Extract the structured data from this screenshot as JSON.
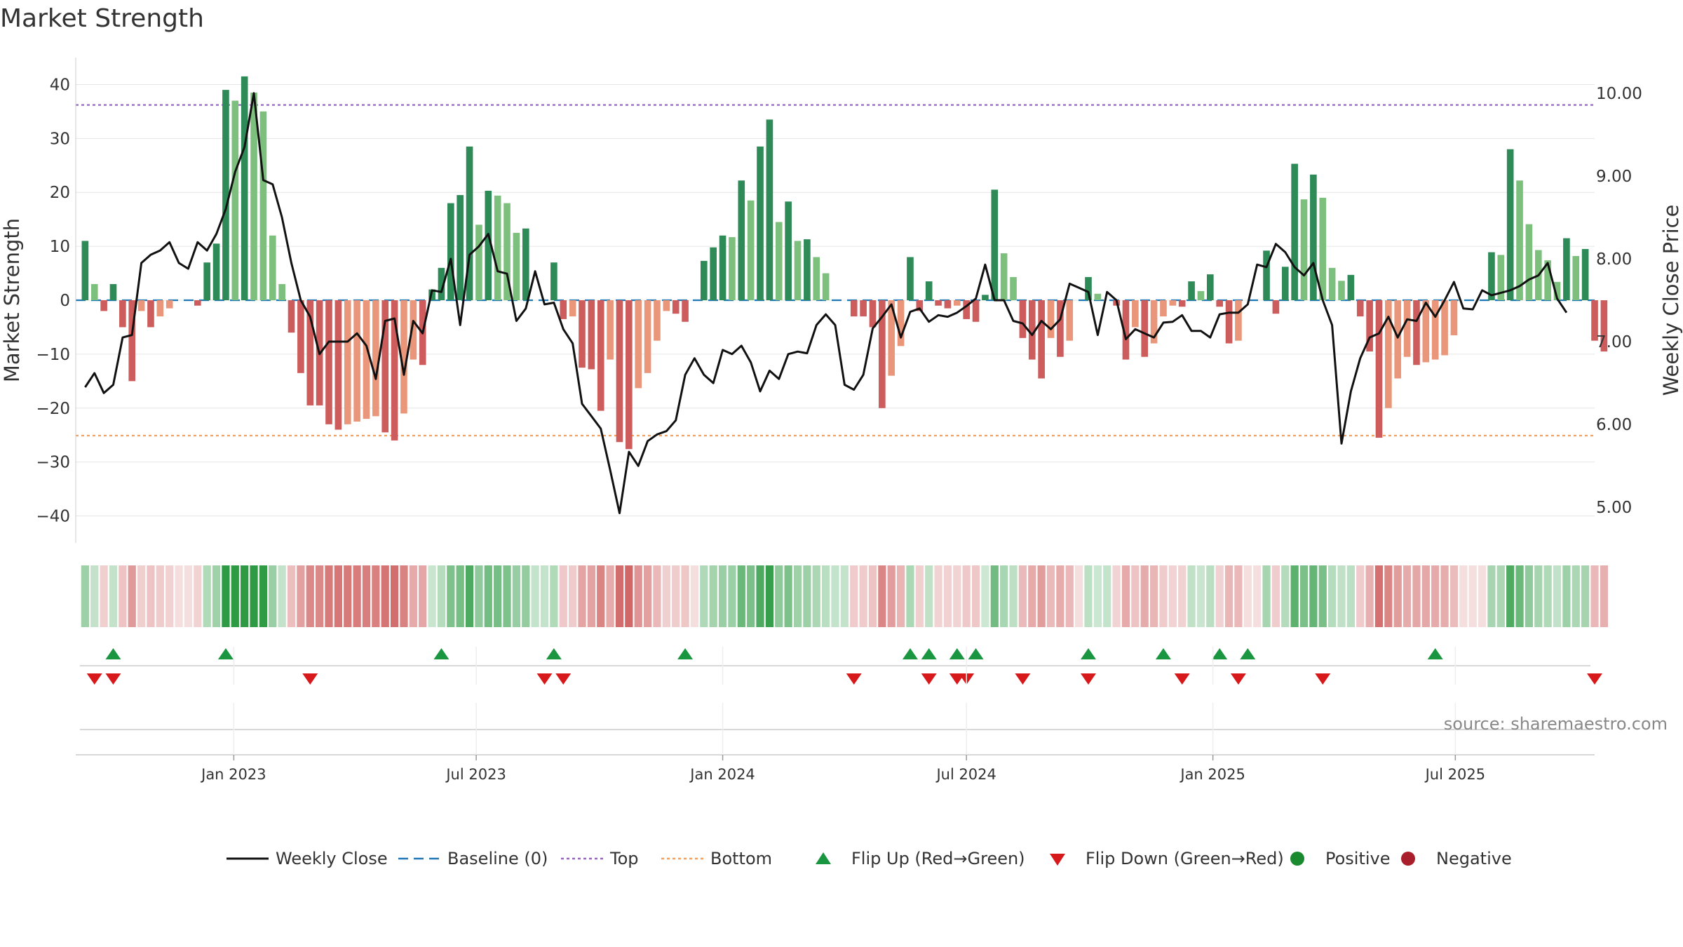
{
  "chart_data": {
    "type": "bar",
    "title": "Market Strength",
    "ylabel_left": "Market Strength",
    "ylabel_right": "Weekly Close Price",
    "ylim_left": [
      -45,
      45
    ],
    "ylim_right": [
      4.57,
      10.43
    ],
    "yticks_left": [
      40,
      30,
      20,
      10,
      0,
      -10,
      -20,
      -30,
      -40
    ],
    "yticks_left_labels": [
      "40",
      "30",
      "20",
      "10",
      "0",
      "−10",
      "−20",
      "−30",
      "−40"
    ],
    "yticks_right": [
      10.0,
      9.0,
      8.0,
      7.0,
      6.0,
      5.0
    ],
    "yticks_right_labels": [
      "10.00",
      "9.00",
      "8.00",
      "7.00",
      "6.00",
      "5.00"
    ],
    "x_start": "2022-09-12",
    "x_interval": "weekly",
    "x_range": [
      "2022-09-05",
      "2025-10-13"
    ],
    "xtick_dates": [
      "2023-01-01",
      "2023-07-01",
      "2024-01-01",
      "2024-07-01",
      "2025-01-01",
      "2025-07-01"
    ],
    "xtick_labels": [
      "Jan 2023",
      "Jul 2023",
      "Jan 2024",
      "Jul 2024",
      "Jan 2025",
      "Jul 2025"
    ],
    "strength": [
      11,
      3,
      -2,
      3,
      -5,
      -15,
      -2,
      -5,
      -3,
      -1.5,
      0,
      0,
      -1,
      7,
      10.5,
      39,
      37,
      41.5,
      38.5,
      35,
      12,
      3,
      -6,
      -13.5,
      -19.5,
      -19.5,
      -23,
      -24,
      -23,
      -22.5,
      -22,
      -21.5,
      -24.5,
      -26,
      -21,
      -11,
      -12,
      2,
      6,
      18,
      19.5,
      28.5,
      14,
      20.3,
      19.4,
      18,
      12.5,
      13.3,
      0,
      0,
      7,
      -3.5,
      -3,
      -12.5,
      -12.8,
      -20.5,
      -11,
      -26.3,
      -27.6,
      -16.3,
      -13.5,
      -7.5,
      -2,
      -2.5,
      -4,
      0,
      7.3,
      9.8,
      12,
      11.7,
      22.2,
      18.5,
      28.5,
      33.5,
      14.5,
      18.3,
      11,
      11.3,
      8,
      5,
      0,
      0,
      -3,
      -3,
      -5,
      -20,
      -14,
      -8.5,
      8,
      -2,
      3.5,
      -1,
      -1.5,
      -1,
      -3.5,
      -4,
      1,
      20.5,
      8.7,
      4.3,
      -7,
      -11,
      -14.5,
      -7,
      -10.5,
      -7.5,
      0,
      4.3,
      1.2,
      0,
      -1,
      -11,
      -5,
      -10.5,
      -8,
      -3,
      -1,
      -1.2,
      3.5,
      1.7,
      4.8,
      -1.2,
      -8,
      -7.5,
      0,
      0,
      9.2,
      -2.5,
      6.2,
      25.3,
      18.7,
      23.3,
      19,
      6,
      3.6,
      4.7,
      -3,
      -9.5,
      -25.5,
      -20,
      -14.5,
      -10.5,
      -12,
      -11.5,
      -11,
      -10.2,
      -6.5,
      0,
      0,
      0,
      8.9,
      8.4,
      28,
      22.2,
      14.1,
      9.3,
      7.4,
      3.4,
      11.5,
      8.2,
      9.5,
      -7.5,
      -9.5
    ],
    "weekly_close": [
      6.45,
      6.62,
      6.38,
      6.48,
      7.05,
      7.08,
      7.95,
      8.05,
      8.1,
      8.2,
      7.95,
      7.88,
      8.2,
      8.1,
      8.3,
      8.6,
      9.05,
      9.35,
      10.0,
      8.95,
      8.9,
      8.5,
      7.95,
      7.5,
      7.3,
      6.85,
      7.0,
      7.0,
      7.0,
      7.1,
      6.95,
      6.55,
      7.25,
      7.28,
      6.6,
      7.25,
      7.1,
      7.62,
      7.6,
      8.0,
      7.2,
      8.05,
      8.15,
      8.3,
      7.85,
      7.82,
      7.25,
      7.4,
      7.85,
      7.45,
      7.47,
      7.15,
      6.98,
      6.25,
      6.1,
      5.95,
      5.45,
      4.93,
      5.67,
      5.5,
      5.8,
      5.88,
      5.92,
      6.05,
      6.6,
      6.8,
      6.6,
      6.5,
      6.9,
      6.85,
      6.95,
      6.75,
      6.4,
      6.65,
      6.55,
      6.85,
      6.88,
      6.86,
      7.2,
      7.33,
      7.2,
      6.48,
      6.42,
      6.6,
      7.16,
      7.3,
      7.45,
      7.05,
      7.36,
      7.4,
      7.24,
      7.32,
      7.3,
      7.35,
      7.43,
      7.52,
      7.93,
      7.5,
      7.5,
      7.25,
      7.22,
      7.08,
      7.25,
      7.15,
      7.27,
      7.7,
      7.65,
      7.6,
      7.08,
      7.6,
      7.5,
      7.03,
      7.15,
      7.1,
      7.05,
      7.23,
      7.24,
      7.32,
      7.13,
      7.13,
      7.05,
      7.33,
      7.35,
      7.35,
      7.45,
      7.93,
      7.9,
      8.18,
      8.08,
      7.9,
      7.8,
      7.95,
      7.5,
      7.2,
      5.77,
      6.4,
      6.8,
      7.05,
      7.1,
      7.3,
      7.05,
      7.27,
      7.25,
      7.47,
      7.3,
      7.5,
      7.72,
      7.4,
      7.39,
      7.62,
      7.56,
      7.59,
      7.62,
      7.67,
      7.75,
      7.8,
      7.95,
      7.52,
      7.35
    ],
    "top_line": 36.2,
    "bottom_line": -25.1,
    "flip_up_dates": [
      "2022-10-03",
      "2022-12-26",
      "2023-06-05",
      "2023-08-28",
      "2023-12-04",
      "2024-05-20",
      "2024-06-03",
      "2024-06-24",
      "2024-07-08",
      "2024-09-30",
      "2024-11-25",
      "2025-01-06",
      "2025-01-27",
      "2025-06-16"
    ],
    "flip_down_dates": [
      "2022-09-19",
      "2022-10-03",
      "2023-02-27",
      "2023-08-21",
      "2023-09-04",
      "2024-04-08",
      "2024-06-03",
      "2024-06-24",
      "2024-07-01",
      "2024-08-12",
      "2024-09-30",
      "2024-12-09",
      "2025-01-20",
      "2025-03-24",
      "2025-10-13"
    ],
    "legend": [
      {
        "label": "Weekly Close",
        "kind": "line",
        "color": "#111111"
      },
      {
        "label": "Baseline (0)",
        "kind": "dash",
        "color": "#1f77b4"
      },
      {
        "label": "Top",
        "kind": "dot",
        "color": "#9467bd"
      },
      {
        "label": "Bottom",
        "kind": "dot",
        "color": "#f0a060"
      },
      {
        "label": "Flip Up (Red→Green)",
        "kind": "tri-up",
        "color": "#1a9641"
      },
      {
        "label": "Flip Down (Green→Red)",
        "kind": "tri-down",
        "color": "#d7191c"
      },
      {
        "label": "Positive",
        "kind": "circle",
        "color": "#1a8a2e"
      },
      {
        "label": "Negative",
        "kind": "circle",
        "color": "#a81e2a"
      }
    ],
    "legend_position": "bottom",
    "grid": true
  },
  "colors": {
    "pos_strong": "#2e8b57",
    "pos_light": "#7dbf7d",
    "neg_strong": "#cd5c5c",
    "neg_light": "#e9967a",
    "heat_pos": "#2e9b44",
    "heat_neg": "#c84848",
    "top_line": "#9467bd",
    "bottom_line": "#f0a060",
    "baseline": "#1f77b4",
    "close_line": "#111111"
  },
  "source": "source: sharemaestro.com"
}
